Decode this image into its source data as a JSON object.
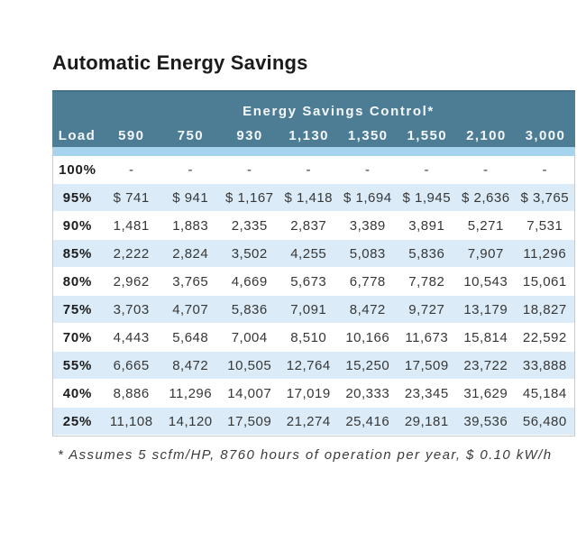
{
  "page": {
    "title": "Automatic Energy Savings",
    "footnote": "* Assumes 5 scfm/HP, 8760 hours of operation per year, $ 0.10 kW/h"
  },
  "colors": {
    "header_bg": "#4d7d95",
    "header_top_edge": "#41708a",
    "header_text": "#f4f8fa",
    "accent_strip": "#a6d3ee",
    "alt_row_bg": "#dbecf8",
    "row_bg": "#ffffff",
    "body_text": "#373737",
    "border": "#c7cbcf"
  },
  "chart_data": {
    "type": "table",
    "title": "Automatic Energy Savings",
    "group_header": "Energy Savings Control*",
    "columns": [
      "Load",
      "590",
      "750",
      "930",
      "1,130",
      "1,350",
      "1,550",
      "2,100",
      "3,000"
    ],
    "rows": [
      {
        "load": "100%",
        "values": [
          "-",
          "-",
          "-",
          "-",
          "-",
          "-",
          "-",
          "-"
        ]
      },
      {
        "load": "95%",
        "values": [
          "$ 741",
          "$ 941",
          "$ 1,167",
          "$ 1,418",
          "$ 1,694",
          "$ 1,945",
          "$ 2,636",
          "$ 3,765"
        ]
      },
      {
        "load": "90%",
        "values": [
          "1,481",
          "1,883",
          "2,335",
          "2,837",
          "3,389",
          "3,891",
          "5,271",
          "7,531"
        ]
      },
      {
        "load": "85%",
        "values": [
          "2,222",
          "2,824",
          "3,502",
          "4,255",
          "5,083",
          "5,836",
          "7,907",
          "11,296"
        ]
      },
      {
        "load": "80%",
        "values": [
          "2,962",
          "3,765",
          "4,669",
          "5,673",
          "6,778",
          "7,782",
          "10,543",
          "15,061"
        ]
      },
      {
        "load": "75%",
        "values": [
          "3,703",
          "4,707",
          "5,836",
          "7,091",
          "8,472",
          "9,727",
          "13,179",
          "18,827"
        ]
      },
      {
        "load": "70%",
        "values": [
          "4,443",
          "5,648",
          "7,004",
          "8,510",
          "10,166",
          "11,673",
          "15,814",
          "22,592"
        ]
      },
      {
        "load": "55%",
        "values": [
          "6,665",
          "8,472",
          "10,505",
          "12,764",
          "15,250",
          "17,509",
          "23,722",
          "33,888"
        ]
      },
      {
        "load": "40%",
        "values": [
          "8,886",
          "11,296",
          "14,007",
          "17,019",
          "20,333",
          "23,345",
          "31,629",
          "45,184"
        ]
      },
      {
        "load": "25%",
        "values": [
          "11,108",
          "14,120",
          "17,509",
          "21,274",
          "25,416",
          "29,181",
          "39,536",
          "56,480"
        ]
      }
    ],
    "footnote": "* Assumes 5 scfm/HP, 8760 hours of operation per year, $ 0.10 kW/h"
  }
}
